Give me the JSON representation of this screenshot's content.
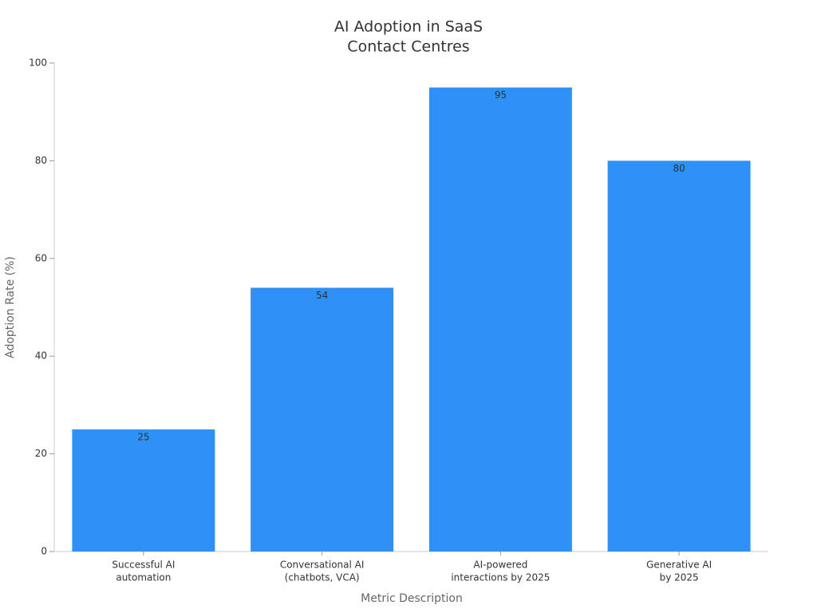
{
  "chart_data": {
    "type": "bar",
    "title": [
      "AI Adoption in SaaS",
      "Contact Centres"
    ],
    "x_label": "Metric Description",
    "y_label": "Adoption Rate (%)",
    "categories": [
      [
        "Successful AI",
        "automation"
      ],
      [
        "Conversational AI",
        "(chatbots, VCA)"
      ],
      [
        "AI-powered",
        "interactions by 2025"
      ],
      [
        "Generative AI",
        "by 2025"
      ]
    ],
    "values": [
      25,
      54,
      95,
      80
    ],
    "color": "#2e91f8",
    "ylim": [
      0,
      100
    ],
    "yticks": [
      0,
      20,
      40,
      60,
      80,
      100
    ],
    "grid": false
  }
}
